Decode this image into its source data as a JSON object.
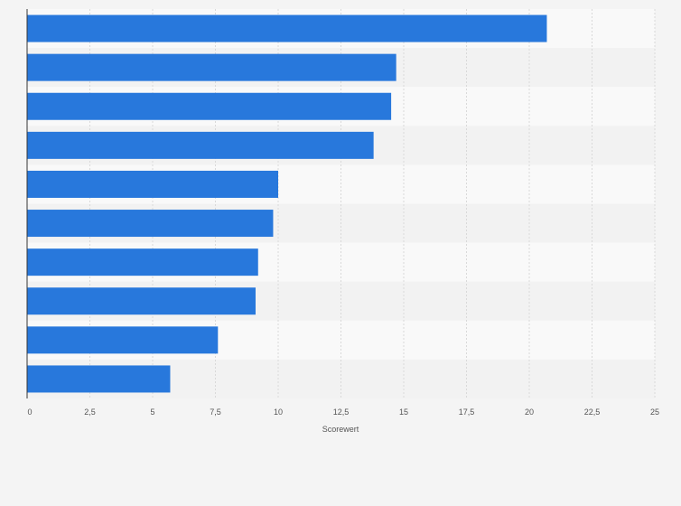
{
  "chart_data": {
    "type": "bar",
    "orientation": "horizontal",
    "categories": [
      "",
      "",
      "",
      "",
      "",
      "",
      "",
      "",
      "",
      ""
    ],
    "values": [
      20.7,
      14.7,
      14.5,
      13.8,
      10.0,
      9.8,
      9.2,
      9.1,
      7.6,
      5.7
    ],
    "xlabel": "Scorewert",
    "ylabel": "",
    "xlim": [
      0,
      25
    ],
    "xticks": [
      "0",
      "2,5",
      "5",
      "7,5",
      "10",
      "12,5",
      "15",
      "17,5",
      "20",
      "22,5",
      "25"
    ],
    "grid": "vertical",
    "legend": "none",
    "colors": {
      "bar": "#2878dc",
      "band_light": "#f9f9f9",
      "band_dark": "#f2f2f2",
      "background": "#f4f4f4",
      "grid": "#d9d9d9",
      "axis": "#333333",
      "text": "#555555"
    }
  }
}
